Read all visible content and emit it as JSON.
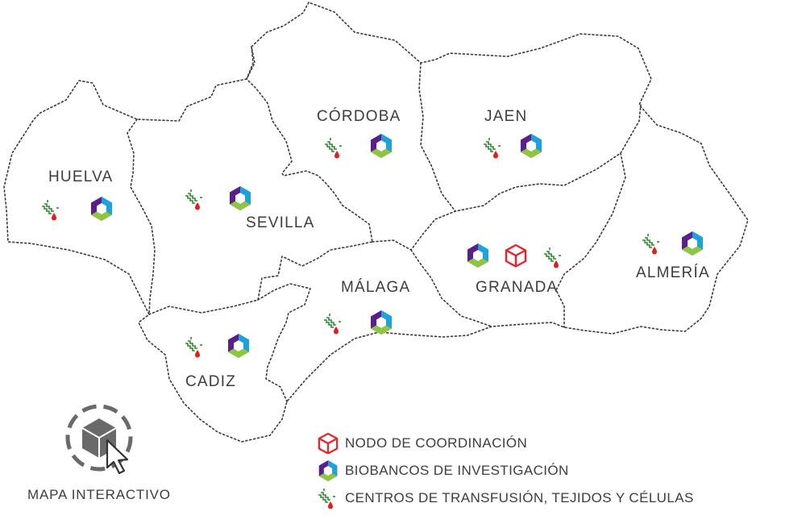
{
  "map": {
    "provinces": [
      {
        "id": "huelva",
        "name": "HUELVA",
        "icons": [
          "transfusion",
          "biobank"
        ]
      },
      {
        "id": "sevilla",
        "name": "SEVILLA",
        "icons": [
          "transfusion",
          "biobank"
        ]
      },
      {
        "id": "cordoba",
        "name": "CÓRDOBA",
        "icons": [
          "transfusion",
          "biobank"
        ]
      },
      {
        "id": "jaen",
        "name": "JAEN",
        "icons": [
          "transfusion",
          "biobank"
        ]
      },
      {
        "id": "cadiz",
        "name": "CADIZ",
        "icons": [
          "transfusion",
          "biobank"
        ]
      },
      {
        "id": "malaga",
        "name": "MÁLAGA",
        "icons": [
          "transfusion",
          "biobank"
        ]
      },
      {
        "id": "granada",
        "name": "GRANADA",
        "icons": [
          "biobank",
          "coordination",
          "transfusion"
        ]
      },
      {
        "id": "almeria",
        "name": "ALMERÍA",
        "icons": [
          "transfusion",
          "biobank"
        ]
      }
    ]
  },
  "legend": {
    "items": [
      {
        "icon": "coordination-node-icon",
        "label": "NODO DE COORDINACIÓN"
      },
      {
        "icon": "biobank-icon",
        "label": "BIOBANCOS DE INVESTIGACIÓN"
      },
      {
        "icon": "transfusion-center-icon",
        "label": "CENTROS DE TRANSFUSIÓN, TEJIDOS Y CÉLULAS"
      }
    ]
  },
  "interactive": {
    "label": "MAPA INTERACTIVO",
    "icon": "cube-cursor-icon"
  },
  "colors": {
    "border": "#3a3a3a",
    "text": "#3d3d3d",
    "coordination": "#e8242b",
    "biobank_purple": "#5b1f8c",
    "biobank_blue": "#1aa3dc",
    "biobank_green": "#8dc63f",
    "transfusion_green": "#2d8a2d",
    "transfusion_red": "#e02020"
  }
}
